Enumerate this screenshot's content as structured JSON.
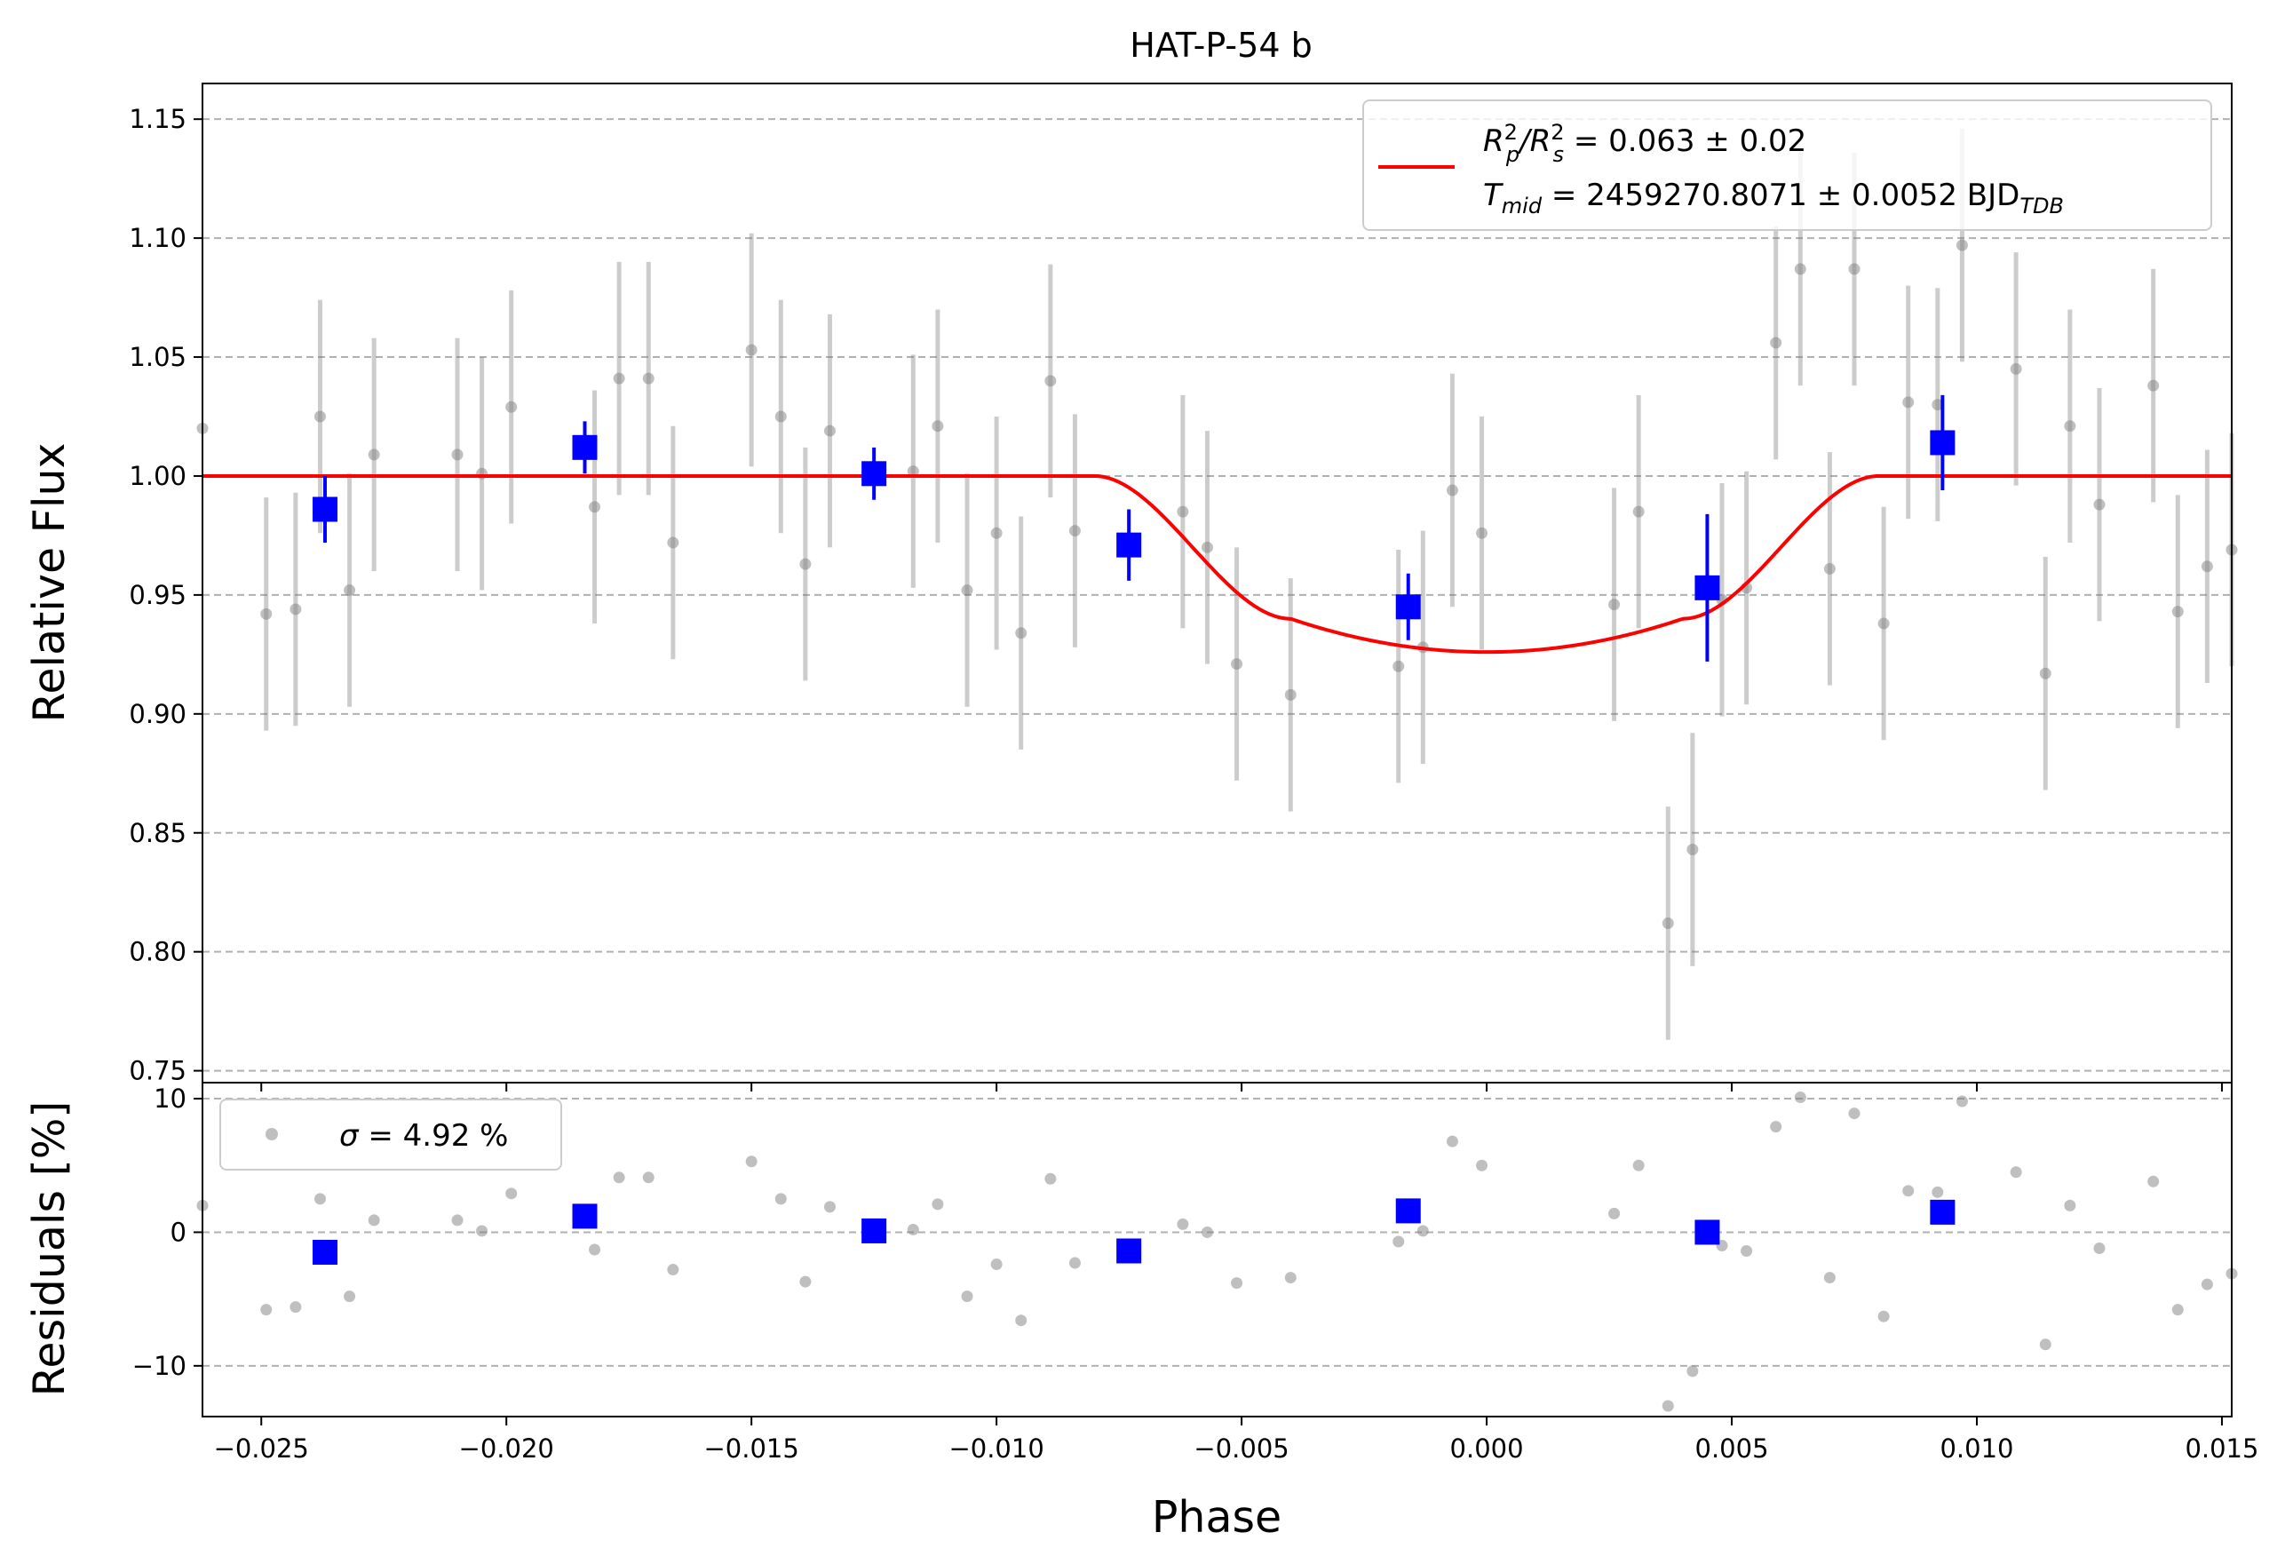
{
  "chart_data": [
    {
      "type": "scatter",
      "title": "HAT-P-54 b",
      "ylabel": "Relative Flux",
      "xlim": [
        -0.0262,
        0.0152
      ],
      "ylim": [
        0.745,
        1.165
      ],
      "yticks": [
        0.75,
        0.8,
        0.85,
        0.9,
        0.95,
        1.0,
        1.05,
        1.1,
        1.15
      ],
      "ytick_labels": [
        "0.75",
        "0.80",
        "0.85",
        "0.90",
        "0.95",
        "1.00",
        "1.05",
        "1.10",
        "1.15"
      ],
      "grid": "y-dashed",
      "legend": {
        "placement": "top-right",
        "line1": {
          "a": "R",
          "b": "2",
          "c": "p",
          "d": "/R",
          "e": "2",
          "f": "s",
          "g": " = 0.063 ± 0.02"
        },
        "line2": {
          "a": "T",
          "b": "mid",
          "c": " = 2459270.8071 ± 0.0052 BJD",
          "d": "TDB"
        }
      },
      "series": [
        {
          "kind": "raw",
          "color": "#808080",
          "points": [
            [
              -0.0262,
              1.02,
              0.0
            ],
            [
              -0.0249,
              0.942,
              0.049
            ],
            [
              -0.0243,
              0.944,
              0.049
            ],
            [
              -0.0238,
              1.025,
              0.049
            ],
            [
              -0.0232,
              0.952,
              0.049
            ],
            [
              -0.0227,
              1.009,
              0.049
            ],
            [
              -0.021,
              1.009,
              0.049
            ],
            [
              -0.0205,
              1.001,
              0.049
            ],
            [
              -0.0199,
              1.029,
              0.049
            ],
            [
              -0.0182,
              0.987,
              0.049
            ],
            [
              -0.0177,
              1.041,
              0.049
            ],
            [
              -0.0171,
              1.041,
              0.049
            ],
            [
              -0.0166,
              0.972,
              0.049
            ],
            [
              -0.015,
              1.053,
              0.049
            ],
            [
              -0.0144,
              1.025,
              0.049
            ],
            [
              -0.0139,
              0.963,
              0.049
            ],
            [
              -0.0134,
              1.019,
              0.049
            ],
            [
              -0.0117,
              1.002,
              0.049
            ],
            [
              -0.0112,
              1.021,
              0.049
            ],
            [
              -0.0106,
              0.952,
              0.049
            ],
            [
              -0.01,
              0.976,
              0.049
            ],
            [
              -0.0095,
              0.934,
              0.049
            ],
            [
              -0.0089,
              1.04,
              0.049
            ],
            [
              -0.0084,
              0.977,
              0.049
            ],
            [
              -0.0062,
              0.985,
              0.049
            ],
            [
              -0.0057,
              0.97,
              0.049
            ],
            [
              -0.0051,
              0.921,
              0.049
            ],
            [
              -0.004,
              0.908,
              0.049
            ],
            [
              -0.0018,
              0.92,
              0.049
            ],
            [
              -0.0013,
              0.928,
              0.049
            ],
            [
              -0.0007,
              0.994,
              0.049
            ],
            [
              -0.0001,
              0.976,
              0.049
            ],
            [
              0.0026,
              0.946,
              0.049
            ],
            [
              0.0031,
              0.985,
              0.049
            ],
            [
              0.0037,
              0.812,
              0.049
            ],
            [
              0.0042,
              0.843,
              0.049
            ],
            [
              0.0048,
              0.948,
              0.049
            ],
            [
              0.0053,
              0.953,
              0.049
            ],
            [
              0.0059,
              1.056,
              0.049
            ],
            [
              0.0064,
              1.087,
              0.049
            ],
            [
              0.007,
              0.961,
              0.049
            ],
            [
              0.0075,
              1.087,
              0.049
            ],
            [
              0.0081,
              0.938,
              0.049
            ],
            [
              0.0086,
              1.031,
              0.049
            ],
            [
              0.0092,
              1.03,
              0.049
            ],
            [
              0.0097,
              1.097,
              0.049
            ],
            [
              0.0108,
              1.045,
              0.049
            ],
            [
              0.0114,
              0.917,
              0.049
            ],
            [
              0.0119,
              1.021,
              0.049
            ],
            [
              0.0125,
              0.988,
              0.049
            ],
            [
              0.0136,
              1.038,
              0.049
            ],
            [
              0.0141,
              0.943,
              0.049
            ],
            [
              0.0147,
              0.962,
              0.049
            ],
            [
              0.0152,
              0.969,
              0.049
            ]
          ]
        },
        {
          "kind": "binned",
          "color": "#0000ff",
          "points": [
            [
              -0.0237,
              0.986,
              0.014
            ],
            [
              -0.0184,
              1.012,
              0.011
            ],
            [
              -0.0125,
              1.001,
              0.011
            ],
            [
              -0.0073,
              0.971,
              0.015
            ],
            [
              -0.0016,
              0.945,
              0.014
            ],
            [
              0.0045,
              0.953,
              0.031
            ],
            [
              0.0093,
              1.014,
              0.02
            ]
          ]
        },
        {
          "kind": "model",
          "color": "#ff0000",
          "t1": -0.008,
          "t2": -0.004,
          "t3": 0.004,
          "t4": 0.008,
          "depth": 0.074,
          "ingress_depth": 0.06
        }
      ]
    },
    {
      "type": "scatter",
      "xlabel": "Phase",
      "ylabel": "Residuals [%]",
      "xlim": [
        -0.0262,
        0.0152
      ],
      "ylim": [
        -13.8,
        11.2
      ],
      "yticks": [
        -10,
        0,
        10
      ],
      "ytick_labels": [
        "−10",
        "0",
        "10"
      ],
      "xticks": [
        -0.025,
        -0.02,
        -0.015,
        -0.01,
        -0.005,
        0.0,
        0.005,
        0.01,
        0.015
      ],
      "xtick_labels": [
        "−0.025",
        "−0.020",
        "−0.015",
        "−0.010",
        "−0.005",
        "0.000",
        "0.005",
        "0.010",
        "0.015"
      ],
      "grid": "y-dashed",
      "legend": {
        "placement": "top-left",
        "label_sym": "σ",
        "label_rest": " = 4.92 %"
      },
      "series": [
        {
          "kind": "raw",
          "color": "#808080",
          "points": [
            [
              -0.0262,
              2.0
            ],
            [
              -0.0249,
              -5.8
            ],
            [
              -0.0243,
              -5.6
            ],
            [
              -0.0238,
              2.5
            ],
            [
              -0.0232,
              -4.8
            ],
            [
              -0.0227,
              0.9
            ],
            [
              -0.021,
              0.9
            ],
            [
              -0.0205,
              0.1
            ],
            [
              -0.0199,
              2.9
            ],
            [
              -0.0182,
              -1.3
            ],
            [
              -0.0177,
              4.1
            ],
            [
              -0.0171,
              4.1
            ],
            [
              -0.0166,
              -2.8
            ],
            [
              -0.015,
              5.3
            ],
            [
              -0.0144,
              2.5
            ],
            [
              -0.0139,
              -3.7
            ],
            [
              -0.0134,
              1.9
            ],
            [
              -0.0117,
              0.2
            ],
            [
              -0.0112,
              2.1
            ],
            [
              -0.0106,
              -4.8
            ],
            [
              -0.01,
              -2.4
            ],
            [
              -0.0095,
              -6.6
            ],
            [
              -0.0089,
              4.0
            ],
            [
              -0.0084,
              -2.3
            ],
            [
              -0.0062,
              0.6
            ],
            [
              -0.0057,
              0.0
            ],
            [
              -0.0051,
              -3.8
            ],
            [
              -0.004,
              -3.4
            ],
            [
              -0.0018,
              -0.7
            ],
            [
              -0.0013,
              0.1
            ],
            [
              -0.0007,
              6.8
            ],
            [
              -0.0001,
              5.0
            ],
            [
              0.0026,
              1.4
            ],
            [
              0.0031,
              5.0
            ],
            [
              0.0037,
              -13.0
            ],
            [
              0.0042,
              -10.4
            ],
            [
              0.0048,
              -1.0
            ],
            [
              0.0053,
              -1.4
            ],
            [
              0.0059,
              7.9
            ],
            [
              0.0064,
              10.1
            ],
            [
              0.007,
              -3.4
            ],
            [
              0.0075,
              8.9
            ],
            [
              0.0081,
              -6.3
            ],
            [
              0.0086,
              3.1
            ],
            [
              0.0092,
              3.0
            ],
            [
              0.0097,
              9.8
            ],
            [
              0.0108,
              4.5
            ],
            [
              0.0114,
              -8.4
            ],
            [
              0.0119,
              2.0
            ],
            [
              0.0125,
              -1.2
            ],
            [
              0.0136,
              3.8
            ],
            [
              0.0141,
              -5.8
            ],
            [
              0.0147,
              -3.9
            ],
            [
              0.0152,
              -3.1
            ]
          ]
        },
        {
          "kind": "binned",
          "color": "#0000ff",
          "points": [
            [
              -0.0237,
              -1.5
            ],
            [
              -0.0184,
              1.2
            ],
            [
              -0.0125,
              0.1
            ],
            [
              -0.0073,
              -1.4
            ],
            [
              -0.0016,
              1.6
            ],
            [
              0.0045,
              0.0
            ],
            [
              0.0093,
              1.5
            ]
          ]
        }
      ]
    }
  ]
}
